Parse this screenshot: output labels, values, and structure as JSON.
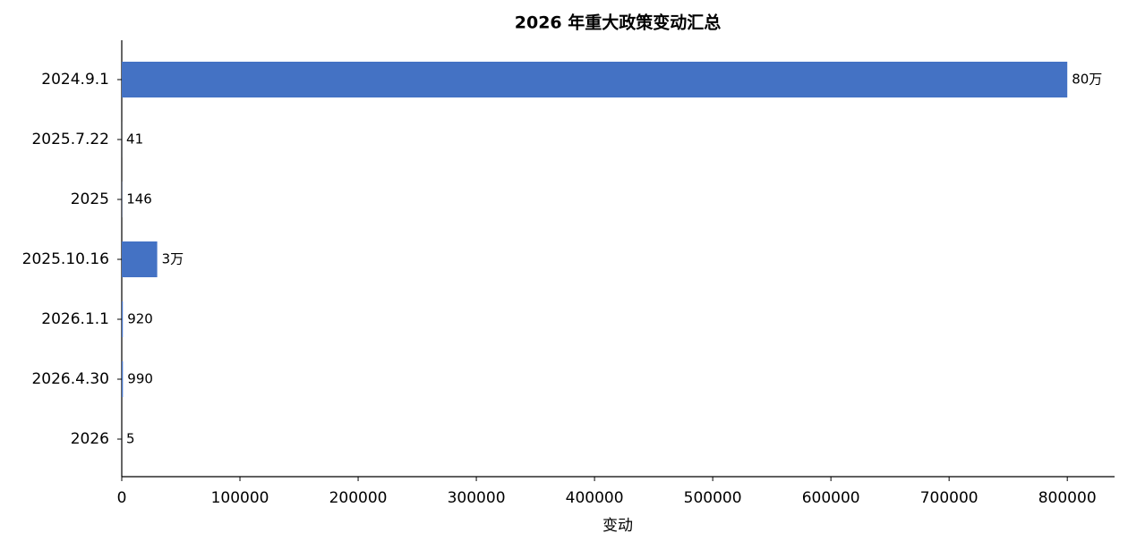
{
  "chart_data": {
    "type": "bar",
    "orientation": "horizontal",
    "title": "2026 年重大政策变动汇总",
    "xlabel": "变动",
    "categories": [
      "2024.9.1",
      "2025.7.22",
      "2025",
      "2025.10.16",
      "2026.1.1",
      "2026.4.30",
      "2026"
    ],
    "values": [
      800000,
      41,
      146,
      30000,
      920,
      990,
      5
    ],
    "value_labels": [
      "80万",
      "41",
      "146",
      "3万",
      "920",
      "990",
      "5"
    ],
    "color": "#4472c4",
    "xlim": [
      0,
      840000
    ],
    "xticks": [
      0,
      100000,
      200000,
      300000,
      400000,
      500000,
      600000,
      700000,
      800000
    ],
    "grid": false
  }
}
